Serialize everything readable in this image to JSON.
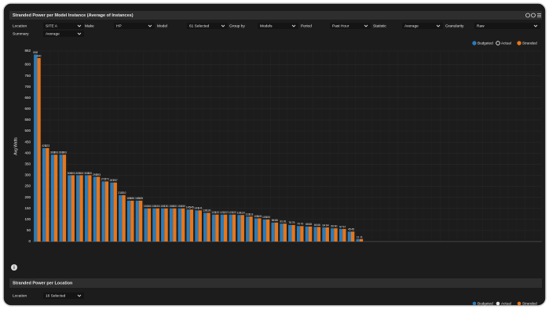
{
  "header": {
    "title": "Stranded Power per Model Instance (Average of Instances)"
  },
  "filters": [
    {
      "label": "Location",
      "value": "SITE A"
    },
    {
      "label": "Make",
      "value": "HP"
    },
    {
      "label": "Model",
      "value": "61 Selected"
    },
    {
      "label": "Group by",
      "value": "Models"
    },
    {
      "label": "Period",
      "value": "Past Hour"
    },
    {
      "label": "Statistic",
      "value": "Average"
    },
    {
      "label": "Granularity",
      "value": "Raw"
    }
  ],
  "summary": {
    "label": "Summary",
    "value": "Average"
  },
  "chart_data": {
    "type": "bar",
    "y_label": "Avg Watts",
    "ylim": [
      0,
      862
    ],
    "yticks": [
      0,
      50,
      100,
      150,
      200,
      250,
      300,
      350,
      400,
      450,
      500,
      550,
      600,
      650,
      700,
      750,
      800,
      862
    ],
    "grid": true,
    "legend": "top-right",
    "categories": [
      null,
      null,
      null,
      null,
      null,
      null,
      null,
      null,
      null,
      null,
      null,
      null,
      null,
      null,
      null,
      null,
      null,
      null,
      null,
      null,
      null,
      null,
      null,
      null,
      null,
      null,
      null,
      null,
      null,
      null,
      null,
      null,
      null,
      null,
      null,
      null,
      null,
      null,
      null,
      null,
      null,
      null,
      null,
      null,
      null,
      null,
      null,
      null,
      null,
      null,
      null,
      null,
      null,
      null,
      null,
      null,
      null,
      null,
      null,
      null
    ],
    "series": [
      {
        "name": "Budgeted",
        "color": "#2b7bb9",
        "values": [
          846,
          423,
          393,
          393,
          300,
          300,
          300,
          293,
          272,
          267,
          210,
          185,
          185,
          150,
          150,
          150,
          150,
          150,
          145,
          141,
          130,
          122,
          122,
          122,
          120,
          113,
          105,
          100,
          86,
          81,
          75,
          70,
          68,
          66,
          64,
          60,
          57,
          45,
          11,
          0,
          0,
          0,
          0,
          0,
          0,
          0,
          0,
          0,
          0,
          0,
          0,
          0,
          0,
          0,
          0,
          0,
          0,
          0,
          0,
          0
        ]
      },
      {
        "name": "Actual",
        "color": "#ffffff",
        "values": [
          null,
          null,
          null,
          null,
          null,
          null,
          null,
          null,
          null,
          null,
          null,
          null,
          null,
          null,
          null,
          null,
          null,
          null,
          null,
          null,
          null,
          null,
          null,
          null,
          null,
          null,
          null,
          null,
          null,
          null,
          null,
          null,
          null,
          null,
          null,
          null,
          null,
          null,
          null,
          null,
          null,
          null,
          null,
          null,
          null,
          null,
          null,
          null,
          null,
          null,
          null,
          null,
          null,
          null,
          null,
          null,
          null,
          null,
          null,
          null
        ]
      },
      {
        "name": "Stranded",
        "color": "#e8761a",
        "values": [
          830,
          423,
          393,
          393,
          300,
          300,
          300,
          293,
          272,
          267,
          210,
          185,
          185,
          150,
          150,
          150,
          150,
          150,
          145,
          141,
          130,
          122,
          122,
          122,
          120,
          113,
          105,
          100,
          86,
          81,
          75,
          70,
          68,
          66,
          64,
          60,
          57,
          45,
          11,
          0,
          0,
          0,
          0,
          0,
          0,
          0,
          0,
          0,
          0,
          0,
          0,
          0,
          0,
          0,
          0,
          0,
          0,
          0,
          0,
          0
        ]
      }
    ]
  },
  "second_panel": {
    "title": "Stranded Power per Location",
    "filters": [
      {
        "label": "Location",
        "value": "16 Selected"
      }
    ],
    "legend": [
      "Budgeted",
      "Actual",
      "Stranded"
    ]
  }
}
